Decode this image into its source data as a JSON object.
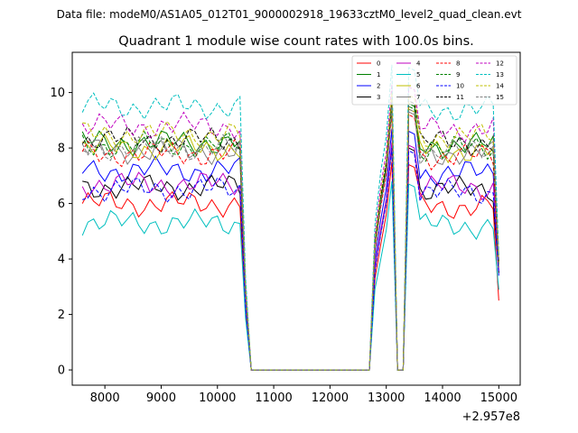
{
  "chart_data": {
    "type": "line",
    "suptitle": "Data file: modeM0/AS1A05_012T01_9000002918_19633cztM0_level2_quad_clean.evt",
    "title": "Quadrant 1 module wise count rates with 100.0s bins.",
    "xlabel": "",
    "ylabel": "",
    "x_offset_label": "+2.957e8",
    "xlim": [
      7420,
      15380
    ],
    "ylim": [
      -0.55,
      11.45
    ],
    "xticks": [
      8000,
      9000,
      10000,
      11000,
      12000,
      13000,
      14000,
      15000
    ],
    "yticks": [
      0,
      2,
      4,
      6,
      8,
      10
    ],
    "x_start": 7600,
    "x_step": 100,
    "x_count": 75,
    "gap_start": 10600,
    "gap_end": 12700,
    "dip_start": 13200,
    "dip_end": 13300,
    "series": [
      {
        "name": "0",
        "color": "#ff0000",
        "dash": "solid",
        "level": 6.0,
        "end": 2.5
      },
      {
        "name": "1",
        "color": "#008000",
        "dash": "solid",
        "level": 8.2,
        "end": 3.9
      },
      {
        "name": "2",
        "color": "#0000ff",
        "dash": "solid",
        "level": 7.2,
        "end": 3.5
      },
      {
        "name": "3",
        "color": "#000000",
        "dash": "solid",
        "level": 6.6,
        "end": 3.5
      },
      {
        "name": "4",
        "color": "#bf00bf",
        "dash": "solid",
        "level": 6.7,
        "end": 3.6
      },
      {
        "name": "5",
        "color": "#00bfbf",
        "dash": "solid",
        "level": 5.3,
        "end": 2.9
      },
      {
        "name": "6",
        "color": "#bfbf00",
        "dash": "solid",
        "level": 8.0,
        "end": 3.8
      },
      {
        "name": "7",
        "color": "#808080",
        "dash": "solid",
        "level": 7.9,
        "end": 3.7
      },
      {
        "name": "8",
        "color": "#ff0000",
        "dash": "dashed",
        "level": 7.8,
        "end": 3.8
      },
      {
        "name": "9",
        "color": "#008000",
        "dash": "dashed",
        "level": 8.1,
        "end": 3.9
      },
      {
        "name": "10",
        "color": "#0000ff",
        "dash": "dashed",
        "level": 6.5,
        "end": 3.4
      },
      {
        "name": "11",
        "color": "#000000",
        "dash": "dashed",
        "level": 8.3,
        "end": 3.9
      },
      {
        "name": "12",
        "color": "#bf00bf",
        "dash": "dashed",
        "level": 8.8,
        "end": 4.0
      },
      {
        "name": "13",
        "color": "#00bfbf",
        "dash": "dashed",
        "level": 9.5,
        "end": 4.1
      },
      {
        "name": "14",
        "color": "#bfbf00",
        "dash": "dashed",
        "level": 8.5,
        "end": 3.9
      },
      {
        "name": "15",
        "color": "#808080",
        "dash": "dashed",
        "level": 8.0,
        "end": 3.8
      }
    ]
  }
}
